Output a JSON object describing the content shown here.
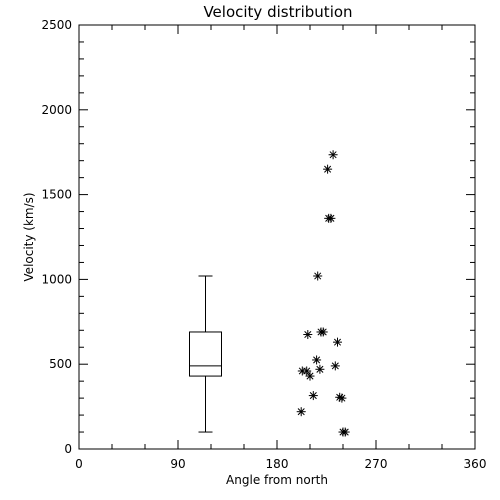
{
  "chart_data": {
    "type": "scatter",
    "title": "Velocity distribution",
    "xlabel": "Angle from north",
    "ylabel": "Velocity (km/s)",
    "xlim": [
      0,
      360
    ],
    "ylim": [
      0,
      2500
    ],
    "xticks": [
      0,
      90,
      180,
      270,
      360
    ],
    "yticks": [
      0,
      500,
      1000,
      1500,
      2000,
      2500
    ],
    "grid": false,
    "boxplot": {
      "x": 115,
      "min": 100,
      "q1": 430,
      "median": 490,
      "q3": 690,
      "max": 1020
    },
    "points": [
      {
        "x": 231,
        "y": 1735
      },
      {
        "x": 226,
        "y": 1650
      },
      {
        "x": 227,
        "y": 1360
      },
      {
        "x": 229,
        "y": 1360
      },
      {
        "x": 217,
        "y": 1020
      },
      {
        "x": 208,
        "y": 675
      },
      {
        "x": 220,
        "y": 690
      },
      {
        "x": 222,
        "y": 690
      },
      {
        "x": 235,
        "y": 630
      },
      {
        "x": 216,
        "y": 525
      },
      {
        "x": 233,
        "y": 490
      },
      {
        "x": 203,
        "y": 460
      },
      {
        "x": 207,
        "y": 460
      },
      {
        "x": 219,
        "y": 470
      },
      {
        "x": 210,
        "y": 430
      },
      {
        "x": 213,
        "y": 315
      },
      {
        "x": 237,
        "y": 305
      },
      {
        "x": 239,
        "y": 300
      },
      {
        "x": 202,
        "y": 220
      },
      {
        "x": 240,
        "y": 100
      },
      {
        "x": 242,
        "y": 100
      }
    ]
  }
}
